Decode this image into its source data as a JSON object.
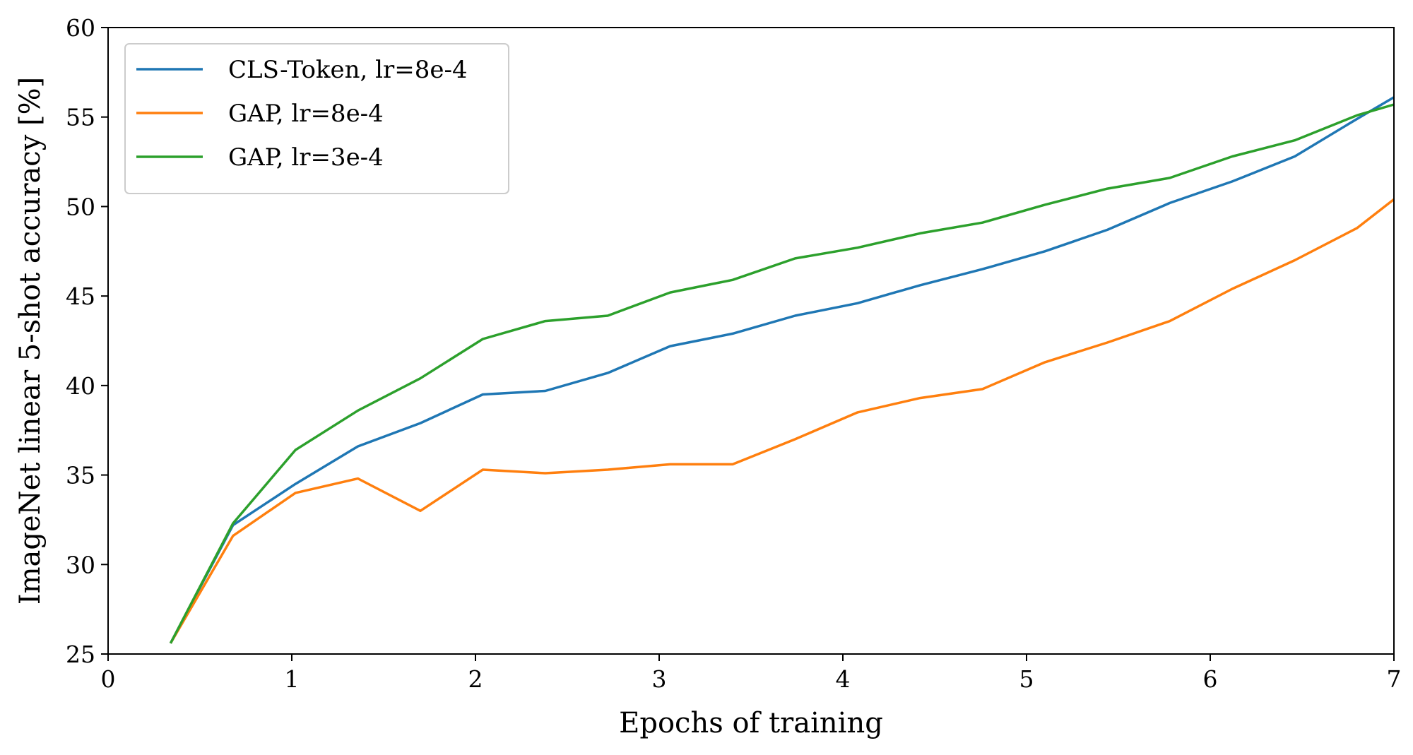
{
  "chart_data": {
    "type": "line",
    "title": "",
    "xlabel": "Epochs of training",
    "ylabel": "ImageNet linear 5-shot accuracy [%]",
    "xlim": [
      0,
      7
    ],
    "ylim": [
      25,
      60
    ],
    "xticks": [
      "0",
      "1",
      "2",
      "3",
      "4",
      "5",
      "6",
      "7"
    ],
    "yticks": [
      "25",
      "30",
      "35",
      "40",
      "45",
      "50",
      "55",
      "60"
    ],
    "grid": false,
    "legend_position": "upper-left",
    "series": [
      {
        "name": "CLS-Token, lr=8e-4",
        "color": "#1f77b4",
        "x": [
          0.34,
          0.68,
          1.02,
          1.36,
          1.7,
          2.04,
          2.38,
          2.72,
          3.06,
          3.4,
          3.74,
          4.08,
          4.42,
          4.76,
          5.1,
          5.44,
          5.78,
          6.12,
          6.46,
          6.8,
          7.0
        ],
        "y": [
          25.6,
          32.2,
          34.5,
          36.6,
          37.9,
          39.5,
          39.7,
          40.7,
          42.2,
          42.9,
          43.9,
          44.6,
          45.6,
          46.5,
          47.5,
          48.7,
          50.2,
          51.4,
          52.8,
          54.9,
          56.1
        ]
      },
      {
        "name": "GAP, lr=8e-4",
        "color": "#ff7f0e",
        "x": [
          0.34,
          0.68,
          1.02,
          1.36,
          1.7,
          2.04,
          2.38,
          2.72,
          3.06,
          3.4,
          3.74,
          4.08,
          4.42,
          4.76,
          5.1,
          5.44,
          5.78,
          6.12,
          6.46,
          6.8,
          7.0
        ],
        "y": [
          25.6,
          31.6,
          34.0,
          34.8,
          33.0,
          35.3,
          35.1,
          35.3,
          35.6,
          35.6,
          37.0,
          38.5,
          39.3,
          39.8,
          41.3,
          42.4,
          43.6,
          45.4,
          47.0,
          48.8,
          50.4
        ]
      },
      {
        "name": "GAP, lr=3e-4",
        "color": "#2ca02c",
        "x": [
          0.34,
          0.68,
          1.02,
          1.36,
          1.7,
          2.04,
          2.38,
          2.72,
          3.06,
          3.4,
          3.74,
          4.08,
          4.42,
          4.76,
          5.1,
          5.44,
          5.78,
          6.12,
          6.46,
          6.8,
          7.0
        ],
        "y": [
          25.6,
          32.3,
          36.4,
          38.6,
          40.4,
          42.6,
          43.6,
          43.9,
          45.2,
          45.9,
          47.1,
          47.7,
          48.5,
          49.1,
          50.1,
          51.0,
          51.6,
          52.8,
          53.7,
          55.1,
          55.7
        ]
      }
    ]
  }
}
